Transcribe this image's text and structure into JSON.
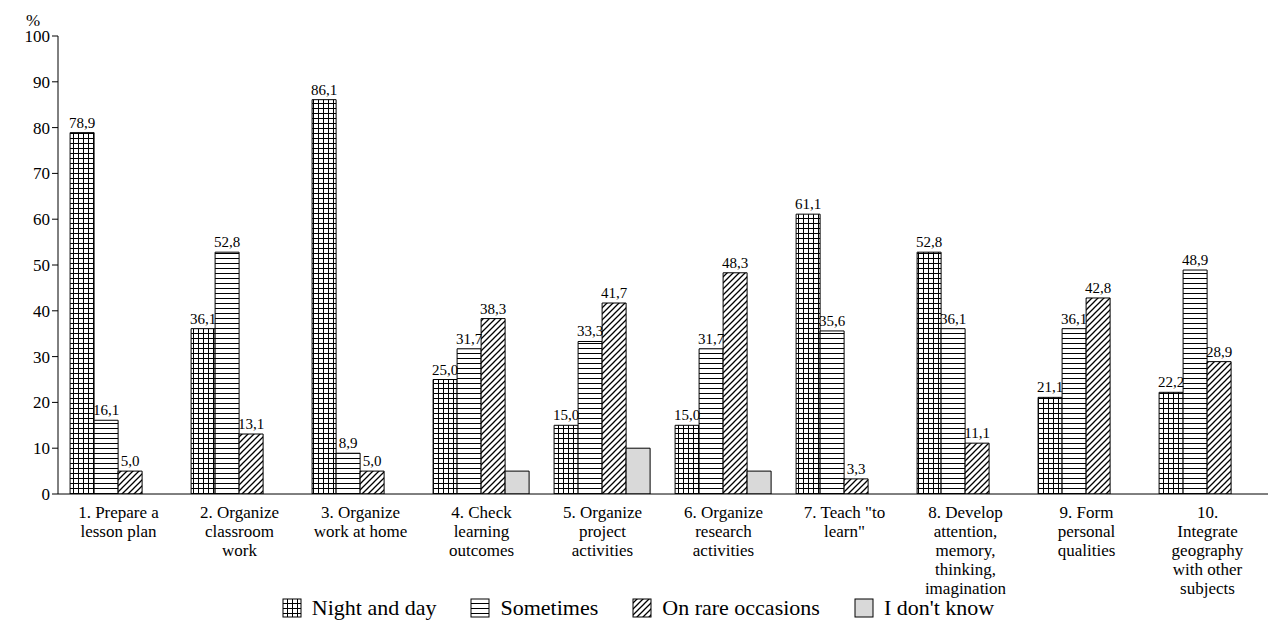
{
  "chart_data": {
    "type": "bar",
    "y_label": "%",
    "categories": [
      "1. Prepare a lesson plan",
      "2. Organize classroom work",
      "3. Organize work at home",
      "4. Check learning outcomes",
      "5. Organize project activities",
      "6. Organize research activities",
      "7. Teach \"to learn\"",
      "8. Develop attention, memory, thinking, imagination",
      "9. Form personal qualities",
      "10. Integrate geography with other subjects"
    ],
    "series": [
      {
        "name": "Night and day",
        "color": "#000000",
        "values": [
          78.9,
          36.1,
          86.1,
          25.0,
          15.0,
          15.0,
          61.1,
          52.8,
          21.1,
          22.2
        ],
        "value_labels": [
          "78,9",
          "36,1",
          "86,1",
          "25,0",
          "15,0",
          "15,0",
          "61,1",
          "52,8",
          "21,1",
          "22,2"
        ]
      },
      {
        "name": "Sometimes",
        "color": "#000000",
        "values": [
          16.1,
          52.8,
          8.9,
          31.7,
          33.3,
          31.7,
          35.6,
          36.1,
          36.1,
          48.9
        ],
        "value_labels": [
          "16,1",
          "52,8",
          "8,9",
          "31,7",
          "33,3",
          "31,7",
          "35,6",
          "36,1",
          "36,1",
          "48,9"
        ]
      },
      {
        "name": "On rare occasions",
        "color": "#000000",
        "values": [
          5.0,
          13.1,
          5.0,
          38.3,
          41.7,
          48.3,
          3.3,
          11.1,
          42.8,
          28.9
        ],
        "value_labels": [
          "5,0",
          "13,1",
          "5,0",
          "38,3",
          "41,7",
          "48,3",
          "3,3",
          "11,1",
          "42,8",
          "28,9"
        ]
      },
      {
        "name": "I don't know",
        "color": "#d9d9d9",
        "values": [
          null,
          null,
          null,
          5.0,
          10.0,
          5.0,
          null,
          null,
          null,
          null
        ]
      }
    ],
    "ylim": [
      0,
      100
    ],
    "yticks": [
      0,
      10,
      20,
      30,
      40,
      50,
      60,
      70,
      80,
      90,
      100
    ],
    "grid": false,
    "legend": "bottom",
    "data_labels": true
  }
}
